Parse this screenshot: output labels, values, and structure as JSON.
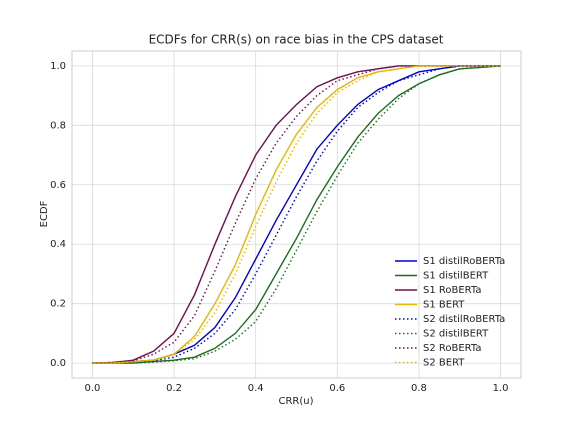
{
  "chart_data": {
    "type": "line",
    "title": "ECDFs for CRR(s) on race bias in the CPS dataset",
    "xlabel": "CRR(u)",
    "ylabel": "ECDF",
    "x": [
      0,
      0.05,
      0.1,
      0.15,
      0.2,
      0.25,
      0.3,
      0.35,
      0.4,
      0.45,
      0.5,
      0.55,
      0.6,
      0.65,
      0.7,
      0.75,
      0.8,
      0.85,
      0.9,
      0.95,
      1
    ],
    "xlim": [
      -0.05,
      1.05
    ],
    "xticks": [
      {
        "value": 0,
        "label": "0.0"
      },
      {
        "value": 0.2,
        "label": "0.2"
      },
      {
        "value": 0.4,
        "label": "0.4"
      },
      {
        "value": 0.6,
        "label": "0.6"
      },
      {
        "value": 0.8,
        "label": "0.8"
      },
      {
        "value": 1,
        "label": "1.0"
      }
    ],
    "ylim": [
      -0.05,
      1.05
    ],
    "yticks": [
      {
        "value": 0,
        "label": "0.0"
      },
      {
        "value": 0.2,
        "label": "0.2"
      },
      {
        "value": 0.4,
        "label": "0.4"
      },
      {
        "value": 0.6,
        "label": "0.6"
      },
      {
        "value": 0.8,
        "label": "0.8"
      },
      {
        "value": 1,
        "label": "1.0"
      }
    ],
    "grid": true,
    "legend": "lower right",
    "series": [
      {
        "name": "S1 distilRoBERTa",
        "color": "#0000cc",
        "linestyle": "solid",
        "values": [
          0,
          0,
          0.005,
          0.01,
          0.03,
          0.06,
          0.12,
          0.22,
          0.35,
          0.48,
          0.6,
          0.72,
          0.8,
          0.87,
          0.92,
          0.95,
          0.98,
          0.99,
          1,
          1,
          1
        ]
      },
      {
        "name": "S1 distilBERT",
        "color": "#1a6e1a",
        "linestyle": "solid",
        "values": [
          0,
          0,
          0,
          0.005,
          0.01,
          0.02,
          0.05,
          0.1,
          0.18,
          0.3,
          0.42,
          0.55,
          0.66,
          0.76,
          0.84,
          0.9,
          0.94,
          0.97,
          0.99,
          0.995,
          1
        ]
      },
      {
        "name": "S1 RoBERTa",
        "color": "#6e0f52",
        "linestyle": "solid",
        "values": [
          0,
          0.002,
          0.01,
          0.04,
          0.1,
          0.23,
          0.4,
          0.56,
          0.7,
          0.8,
          0.87,
          0.93,
          0.96,
          0.98,
          0.99,
          1,
          1,
          1,
          1,
          1,
          1
        ]
      },
      {
        "name": "S1 BERT",
        "color": "#e6b800",
        "linestyle": "solid",
        "values": [
          0,
          0,
          0.005,
          0.01,
          0.03,
          0.09,
          0.2,
          0.33,
          0.5,
          0.65,
          0.77,
          0.86,
          0.92,
          0.96,
          0.98,
          0.99,
          1,
          1,
          1,
          1,
          1
        ]
      },
      {
        "name": "S2 distilRoBERTa",
        "color": "#0000cc",
        "linestyle": "dotted",
        "values": [
          0,
          0,
          0.003,
          0.008,
          0.02,
          0.05,
          0.1,
          0.18,
          0.3,
          0.43,
          0.56,
          0.68,
          0.78,
          0.86,
          0.91,
          0.95,
          0.97,
          0.99,
          1,
          1,
          1
        ]
      },
      {
        "name": "S2 distilBERT",
        "color": "#1a6e1a",
        "linestyle": "dotted",
        "values": [
          0,
          0,
          0,
          0.003,
          0.008,
          0.015,
          0.04,
          0.08,
          0.14,
          0.25,
          0.38,
          0.51,
          0.63,
          0.74,
          0.82,
          0.89,
          0.94,
          0.97,
          0.99,
          0.995,
          1
        ]
      },
      {
        "name": "S2 RoBERTa",
        "color": "#6e0f52",
        "linestyle": "dotted",
        "values": [
          0,
          0.002,
          0.008,
          0.03,
          0.07,
          0.16,
          0.31,
          0.47,
          0.62,
          0.74,
          0.83,
          0.9,
          0.95,
          0.97,
          0.99,
          1,
          1,
          1,
          1,
          1,
          1
        ]
      },
      {
        "name": "S2 BERT",
        "color": "#e6b800",
        "linestyle": "dotted",
        "values": [
          0,
          0,
          0.004,
          0.01,
          0.03,
          0.08,
          0.17,
          0.3,
          0.46,
          0.61,
          0.74,
          0.84,
          0.91,
          0.95,
          0.98,
          0.99,
          1,
          1,
          1,
          1,
          1
        ]
      }
    ]
  }
}
